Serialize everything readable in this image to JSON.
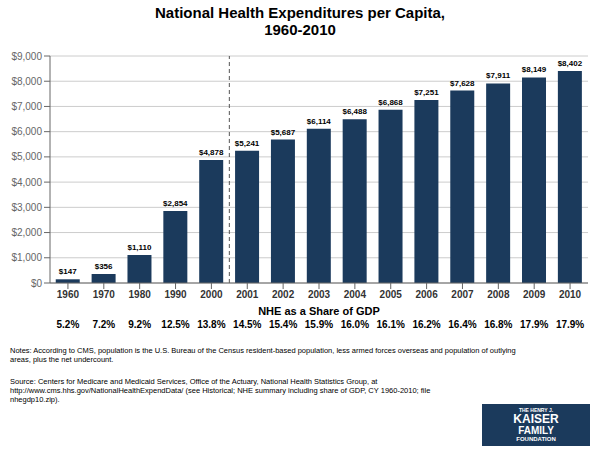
{
  "chart_data": {
    "type": "bar",
    "title": "National Health Expenditures per Capita,\n1960-2010",
    "categories": [
      "1960",
      "1970",
      "1980",
      "1990",
      "2000",
      "2001",
      "2002",
      "2003",
      "2004",
      "2005",
      "2006",
      "2007",
      "2008",
      "2009",
      "2010"
    ],
    "values": [
      147,
      356,
      1110,
      2854,
      4878,
      5241,
      5687,
      6114,
      6488,
      6868,
      7251,
      7628,
      7911,
      8149,
      8402
    ],
    "value_labels": [
      "$147",
      "$356",
      "$1,110",
      "$2,854",
      "$4,878",
      "$5,241",
      "$5,687",
      "$6,114",
      "$6,488",
      "$6,868",
      "$7,251",
      "$7,628",
      "$7,911",
      "$8,149",
      "$8,402"
    ],
    "data_labels": true,
    "color": "#1b3a5c",
    "ylim": [
      0,
      9000
    ],
    "yticks": [
      {
        "value": 0,
        "label": "$0"
      },
      {
        "value": 1000,
        "label": "$1,000"
      },
      {
        "value": 2000,
        "label": "$2,000"
      },
      {
        "value": 3000,
        "label": "$3,000"
      },
      {
        "value": 4000,
        "label": "$4,000"
      },
      {
        "value": 5000,
        "label": "$5,000"
      },
      {
        "value": 6000,
        "label": "$6,000"
      },
      {
        "value": 7000,
        "label": "$7,000"
      },
      {
        "value": 8000,
        "label": "$8,000"
      },
      {
        "value": 9000,
        "label": "$9,000"
      }
    ],
    "grid": true,
    "separator_after": "2000",
    "gdp_share_title": "NHE as a Share of GDP",
    "gdp_share_labels": [
      "5.2%",
      "7.2%",
      "9.2%",
      "12.5%",
      "13.8%",
      "14.5%",
      "15.4%",
      "15.9%",
      "16.0%",
      "16.1%",
      "16.2%",
      "16.4%",
      "16.8%",
      "17.9%",
      "17.9%"
    ],
    "note": "Notes: According to CMS, population is the U.S. Bureau of the Census resident-based population, less armed forces overseas and population of outlying\nareas, plus the net undercount.",
    "source": [
      "Source: Centers for Medicare and Medicaid Services, Office of the Actuary, National Health Statistics Group, at",
      "http://www.cms.hhs.gov/NationalHealthExpendData/  (see Historical; NHE summary including share of GDP, CY 1960-2010; file nhegdp10.zip)."
    ],
    "logo": [
      "THE HENRY J.",
      "KAISER",
      "FAMILY",
      "FOUNDATION"
    ]
  }
}
